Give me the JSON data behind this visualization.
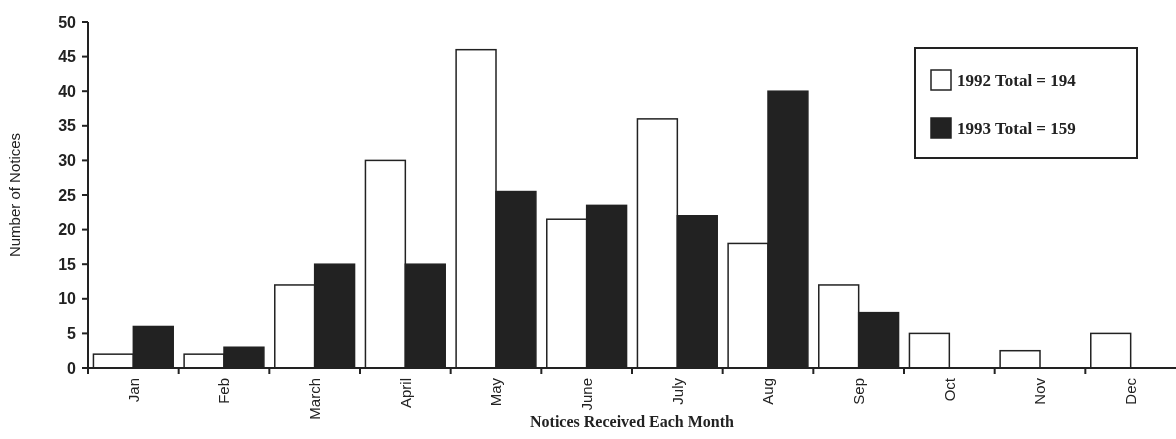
{
  "chart_data": {
    "type": "bar",
    "xlabel": "Notices Received Each Month",
    "ylabel": "Number of Notices",
    "categories": [
      "Jan",
      "Feb",
      "March",
      "April",
      "May",
      "June",
      "July",
      "Aug",
      "Sep",
      "Oct",
      "Nov",
      "Dec"
    ],
    "series": [
      {
        "name": "1992 Total = 194",
        "color": "#ffffff",
        "values": [
          2,
          2,
          12,
          30,
          46,
          21.5,
          36,
          18,
          12,
          5,
          2.5,
          5
        ]
      },
      {
        "name": "1993 Total = 159",
        "color": "#222222",
        "values": [
          6,
          3,
          15,
          15,
          25.5,
          23.5,
          22,
          40,
          8,
          null,
          null,
          null
        ]
      }
    ],
    "ylim": [
      0,
      50
    ],
    "yticks": [
      0,
      5,
      10,
      15,
      20,
      25,
      30,
      35,
      40,
      45,
      50
    ],
    "grid": false,
    "legend": "top right"
  }
}
